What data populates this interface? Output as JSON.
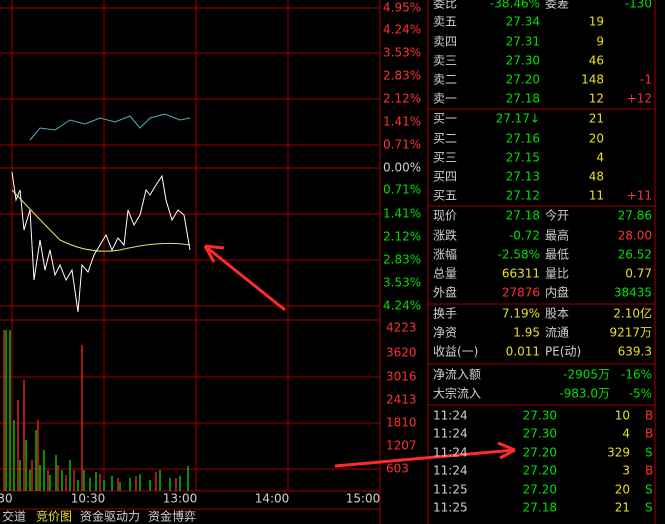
{
  "chart_panel": {
    "price_axis": [
      "4.95%",
      "4.24%",
      "3.53%",
      "2.83%",
      "2.12%",
      "1.41%",
      "0.71%",
      "0.00%",
      "0.71%",
      "1.41%",
      "2.12%",
      "2.83%",
      "3.53%",
      "4.24%"
    ],
    "volume_axis": [
      "4223",
      "3620",
      "3016",
      "2413",
      "1810",
      "1207",
      "603"
    ],
    "time_axis": [
      "30",
      "10:30",
      "13:00",
      "14:00",
      "15:00"
    ],
    "tabs": [
      "交道",
      "竞价图",
      "资金驱动力",
      "资金博弈"
    ]
  },
  "order_book": {
    "header": [
      "委比",
      "-38.46%",
      "委差",
      "-130"
    ],
    "sell": [
      [
        "卖五",
        "27.34",
        "19"
      ],
      [
        "卖四",
        "27.31",
        "9"
      ],
      [
        "卖三",
        "27.30",
        "46"
      ],
      [
        "卖二",
        "27.20",
        "148",
        "-1"
      ],
      [
        "卖一",
        "27.18",
        "12",
        "+12"
      ]
    ],
    "buy": [
      [
        "买一",
        "27.17↓",
        "21"
      ],
      [
        "买二",
        "27.16",
        "20"
      ],
      [
        "买三",
        "27.15",
        "4"
      ],
      [
        "买四",
        "27.13",
        "48"
      ],
      [
        "买五",
        "27.12",
        "11",
        "+11"
      ]
    ]
  },
  "quote": [
    [
      "现价",
      "27.18",
      "今开",
      "27.86"
    ],
    [
      "涨跌",
      "-0.72",
      "最高",
      "28.00"
    ],
    [
      "涨幅",
      "-2.58%",
      "最低",
      "26.52"
    ],
    [
      "总量",
      "66311",
      "量比",
      "0.77"
    ],
    [
      "外盘",
      "27876",
      "内盘",
      "38435"
    ]
  ],
  "fundamentals": [
    [
      "换手",
      "7.19%",
      "股本",
      "2.10亿"
    ],
    [
      "净资",
      "1.95",
      "流通",
      "9217万"
    ],
    [
      "收益(一)",
      "0.011",
      "PE(动)",
      "639.3"
    ]
  ],
  "flow": [
    [
      "净流入额",
      "-2905万",
      "-16%"
    ],
    [
      "大宗流入",
      "-983.0万",
      "-5%"
    ]
  ],
  "trades": [
    [
      "11:24",
      "27.30",
      "10",
      "B"
    ],
    [
      "11:24",
      "27.30",
      "4",
      "B"
    ],
    [
      "11:24",
      "27.20",
      "329",
      "S"
    ],
    [
      "11:24",
      "27.20",
      "3",
      "B"
    ],
    [
      "11:25",
      "27.20",
      "20",
      "S"
    ],
    [
      "11:25",
      "27.18",
      "21",
      "S"
    ]
  ]
}
